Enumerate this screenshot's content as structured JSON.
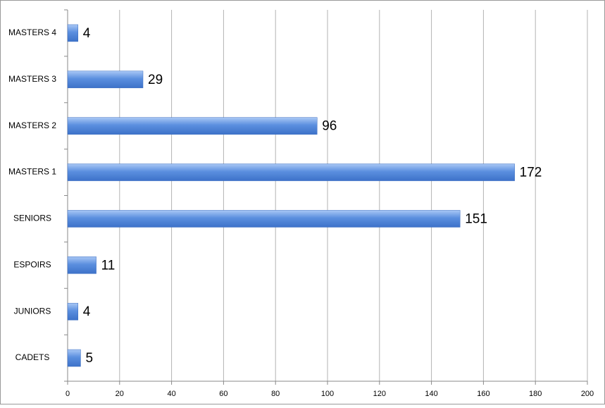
{
  "chart_data": {
    "type": "hbar",
    "categories": [
      "MASTERS 4",
      "MASTERS 3",
      "MASTERS 2",
      "MASTERS 1",
      "SENIORS",
      "ESPOIRS",
      "JUNIORS",
      "CADETS"
    ],
    "values": [
      4,
      29,
      96,
      172,
      151,
      11,
      4,
      5
    ],
    "color": "#5b8fdf",
    "xlim": [
      0,
      200
    ],
    "xticks": [
      0,
      20,
      40,
      60,
      80,
      100,
      120,
      140,
      160,
      180,
      200
    ],
    "grid": true
  }
}
